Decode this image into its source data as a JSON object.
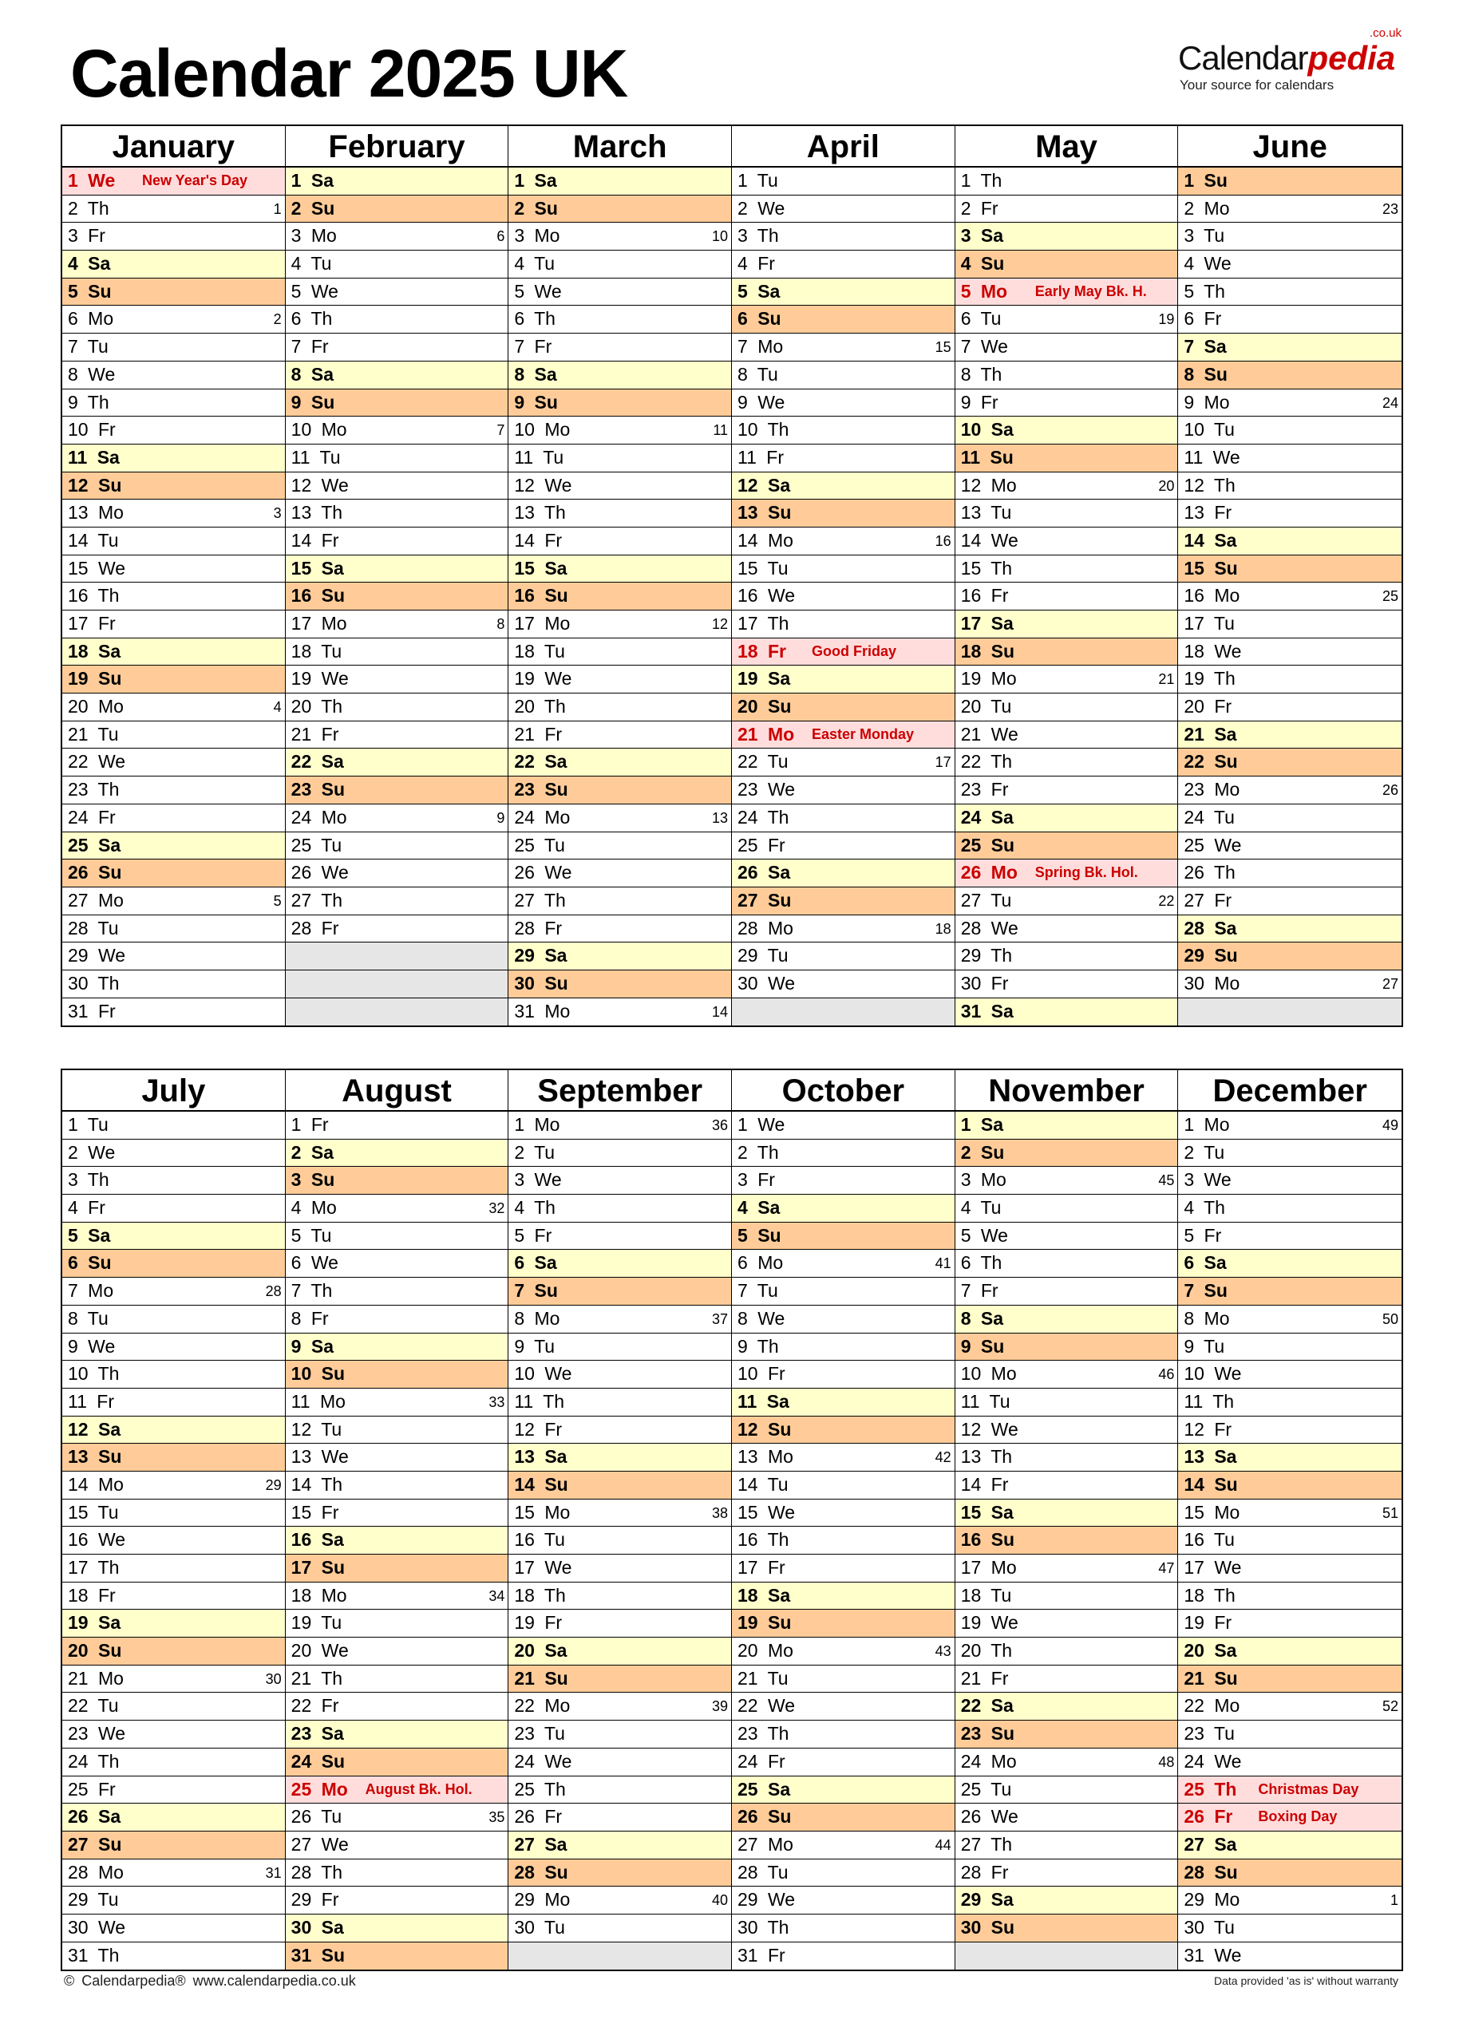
{
  "title": "Calendar 2025 UK",
  "logo": {
    "brand_a": "Calendar",
    "brand_b": "pedia",
    "domain": ".co.uk",
    "tagline": "Your source for calendars"
  },
  "footer": {
    "left": "© Calendarpedia®   www.calendarpedia.co.uk",
    "right": "Data provided 'as is' without warranty"
  },
  "colors": {
    "saturday": "#ffffcc",
    "sunday": "#ffcc99",
    "holiday_bg": "#ffdddd",
    "holiday_text": "#cc0000",
    "empty": "#e6e6e6"
  },
  "months": [
    {
      "name": "January",
      "days": [
        "1 We",
        "2 Th",
        "3 Fr",
        "4 Sa",
        "5 Su",
        "6 Mo",
        "7 Tu",
        "8 We",
        "9 Th",
        "10 Fr",
        "11 Sa",
        "12 Su",
        "13 Mo",
        "14 Tu",
        "15 We",
        "16 Th",
        "17 Fr",
        "18 Sa",
        "19 Su",
        "20 Mo",
        "21 Tu",
        "22 We",
        "23 Th",
        "24 Fr",
        "25 Sa",
        "26 Su",
        "27 Mo",
        "28 Tu",
        "29 We",
        "30 Th",
        "31 Fr"
      ],
      "weeks": {
        "2": "1",
        "6": "2",
        "13": "3",
        "20": "4",
        "27": "5"
      },
      "holidays": {
        "1": "New Year's Day"
      }
    },
    {
      "name": "February",
      "days": [
        "1 Sa",
        "2 Su",
        "3 Mo",
        "4 Tu",
        "5 We",
        "6 Th",
        "7 Fr",
        "8 Sa",
        "9 Su",
        "10 Mo",
        "11 Tu",
        "12 We",
        "13 Th",
        "14 Fr",
        "15 Sa",
        "16 Su",
        "17 Mo",
        "18 Tu",
        "19 We",
        "20 Th",
        "21 Fr",
        "22 Sa",
        "23 Su",
        "24 Mo",
        "25 Tu",
        "26 We",
        "27 Th",
        "28 Fr"
      ],
      "weeks": {
        "3": "6",
        "10": "7",
        "17": "8",
        "24": "9"
      },
      "holidays": {}
    },
    {
      "name": "March",
      "days": [
        "1 Sa",
        "2 Su",
        "3 Mo",
        "4 Tu",
        "5 We",
        "6 Th",
        "7 Fr",
        "8 Sa",
        "9 Su",
        "10 Mo",
        "11 Tu",
        "12 We",
        "13 Th",
        "14 Fr",
        "15 Sa",
        "16 Su",
        "17 Mo",
        "18 Tu",
        "19 We",
        "20 Th",
        "21 Fr",
        "22 Sa",
        "23 Su",
        "24 Mo",
        "25 Tu",
        "26 We",
        "27 Th",
        "28 Fr",
        "29 Sa",
        "30 Su",
        "31 Mo"
      ],
      "weeks": {
        "3": "10",
        "10": "11",
        "17": "12",
        "24": "13",
        "31": "14"
      },
      "holidays": {}
    },
    {
      "name": "April",
      "days": [
        "1 Tu",
        "2 We",
        "3 Th",
        "4 Fr",
        "5 Sa",
        "6 Su",
        "7 Mo",
        "8 Tu",
        "9 We",
        "10 Th",
        "11 Fr",
        "12 Sa",
        "13 Su",
        "14 Mo",
        "15 Tu",
        "16 We",
        "17 Th",
        "18 Fr",
        "19 Sa",
        "20 Su",
        "21 Mo",
        "22 Tu",
        "23 We",
        "24 Th",
        "25 Fr",
        "26 Sa",
        "27 Su",
        "28 Mo",
        "29 Tu",
        "30 We"
      ],
      "weeks": {
        "7": "15",
        "14": "16",
        "22": "17",
        "28": "18"
      },
      "holidays": {
        "18": "Good Friday",
        "21": "Easter Monday"
      }
    },
    {
      "name": "May",
      "days": [
        "1 Th",
        "2 Fr",
        "3 Sa",
        "4 Su",
        "5 Mo",
        "6 Tu",
        "7 We",
        "8 Th",
        "9 Fr",
        "10 Sa",
        "11 Su",
        "12 Mo",
        "13 Tu",
        "14 We",
        "15 Th",
        "16 Fr",
        "17 Sa",
        "18 Su",
        "19 Mo",
        "20 Tu",
        "21 We",
        "22 Th",
        "23 Fr",
        "24 Sa",
        "25 Su",
        "26 Mo",
        "27 Tu",
        "28 We",
        "29 Th",
        "30 Fr",
        "31 Sa"
      ],
      "weeks": {
        "6": "19",
        "12": "20",
        "19": "21",
        "27": "22"
      },
      "holidays": {
        "5": "Early May Bk. H.",
        "26": "Spring Bk. Hol."
      }
    },
    {
      "name": "June",
      "days": [
        "1 Su",
        "2 Mo",
        "3 Tu",
        "4 We",
        "5 Th",
        "6 Fr",
        "7 Sa",
        "8 Su",
        "9 Mo",
        "10 Tu",
        "11 We",
        "12 Th",
        "13 Fr",
        "14 Sa",
        "15 Su",
        "16 Mo",
        "17 Tu",
        "18 We",
        "19 Th",
        "20 Fr",
        "21 Sa",
        "22 Su",
        "23 Mo",
        "24 Tu",
        "25 We",
        "26 Th",
        "27 Fr",
        "28 Sa",
        "29 Su",
        "30 Mo"
      ],
      "weeks": {
        "2": "23",
        "9": "24",
        "16": "25",
        "23": "26",
        "30": "27"
      },
      "holidays": {}
    },
    {
      "name": "July",
      "days": [
        "1 Tu",
        "2 We",
        "3 Th",
        "4 Fr",
        "5 Sa",
        "6 Su",
        "7 Mo",
        "8 Tu",
        "9 We",
        "10 Th",
        "11 Fr",
        "12 Sa",
        "13 Su",
        "14 Mo",
        "15 Tu",
        "16 We",
        "17 Th",
        "18 Fr",
        "19 Sa",
        "20 Su",
        "21 Mo",
        "22 Tu",
        "23 We",
        "24 Th",
        "25 Fr",
        "26 Sa",
        "27 Su",
        "28 Mo",
        "29 Tu",
        "30 We",
        "31 Th"
      ],
      "weeks": {
        "7": "28",
        "14": "29",
        "21": "30",
        "28": "31"
      },
      "holidays": {}
    },
    {
      "name": "August",
      "days": [
        "1 Fr",
        "2 Sa",
        "3 Su",
        "4 Mo",
        "5 Tu",
        "6 We",
        "7 Th",
        "8 Fr",
        "9 Sa",
        "10 Su",
        "11 Mo",
        "12 Tu",
        "13 We",
        "14 Th",
        "15 Fr",
        "16 Sa",
        "17 Su",
        "18 Mo",
        "19 Tu",
        "20 We",
        "21 Th",
        "22 Fr",
        "23 Sa",
        "24 Su",
        "25 Mo",
        "26 Tu",
        "27 We",
        "28 Th",
        "29 Fr",
        "30 Sa",
        "31 Su"
      ],
      "weeks": {
        "4": "32",
        "11": "33",
        "18": "34",
        "26": "35"
      },
      "holidays": {
        "25": "August Bk. Hol."
      }
    },
    {
      "name": "September",
      "days": [
        "1 Mo",
        "2 Tu",
        "3 We",
        "4 Th",
        "5 Fr",
        "6 Sa",
        "7 Su",
        "8 Mo",
        "9 Tu",
        "10 We",
        "11 Th",
        "12 Fr",
        "13 Sa",
        "14 Su",
        "15 Mo",
        "16 Tu",
        "17 We",
        "18 Th",
        "19 Fr",
        "20 Sa",
        "21 Su",
        "22 Mo",
        "23 Tu",
        "24 We",
        "25 Th",
        "26 Fr",
        "27 Sa",
        "28 Su",
        "29 Mo",
        "30 Tu"
      ],
      "weeks": {
        "1": "36",
        "8": "37",
        "15": "38",
        "22": "39",
        "29": "40"
      },
      "holidays": {}
    },
    {
      "name": "October",
      "days": [
        "1 We",
        "2 Th",
        "3 Fr",
        "4 Sa",
        "5 Su",
        "6 Mo",
        "7 Tu",
        "8 We",
        "9 Th",
        "10 Fr",
        "11 Sa",
        "12 Su",
        "13 Mo",
        "14 Tu",
        "15 We",
        "16 Th",
        "17 Fr",
        "18 Sa",
        "19 Su",
        "20 Mo",
        "21 Tu",
        "22 We",
        "23 Th",
        "24 Fr",
        "25 Sa",
        "26 Su",
        "27 Mo",
        "28 Tu",
        "29 We",
        "30 Th",
        "31 Fr"
      ],
      "weeks": {
        "6": "41",
        "13": "42",
        "20": "43",
        "27": "44"
      },
      "holidays": {}
    },
    {
      "name": "November",
      "days": [
        "1 Sa",
        "2 Su",
        "3 Mo",
        "4 Tu",
        "5 We",
        "6 Th",
        "7 Fr",
        "8 Sa",
        "9 Su",
        "10 Mo",
        "11 Tu",
        "12 We",
        "13 Th",
        "14 Fr",
        "15 Sa",
        "16 Su",
        "17 Mo",
        "18 Tu",
        "19 We",
        "20 Th",
        "21 Fr",
        "22 Sa",
        "23 Su",
        "24 Mo",
        "25 Tu",
        "26 We",
        "27 Th",
        "28 Fr",
        "29 Sa",
        "30 Su"
      ],
      "weeks": {
        "3": "45",
        "10": "46",
        "17": "47",
        "24": "48"
      },
      "holidays": {}
    },
    {
      "name": "December",
      "days": [
        "1 Mo",
        "2 Tu",
        "3 We",
        "4 Th",
        "5 Fr",
        "6 Sa",
        "7 Su",
        "8 Mo",
        "9 Tu",
        "10 We",
        "11 Th",
        "12 Fr",
        "13 Sa",
        "14 Su",
        "15 Mo",
        "16 Tu",
        "17 We",
        "18 Th",
        "19 Fr",
        "20 Sa",
        "21 Su",
        "22 Mo",
        "23 Tu",
        "24 We",
        "25 Th",
        "26 Fr",
        "27 Sa",
        "28 Su",
        "29 Mo",
        "30 Tu",
        "31 We"
      ],
      "weeks": {
        "1": "49",
        "8": "50",
        "15": "51",
        "22": "52",
        "29": "1"
      },
      "holidays": {
        "25": "Christmas Day",
        "26": "Boxing Day"
      }
    }
  ]
}
